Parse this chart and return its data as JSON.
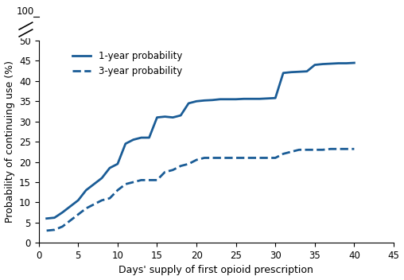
{
  "line1_x": [
    1,
    2,
    3,
    4,
    5,
    6,
    7,
    8,
    9,
    10,
    11,
    12,
    13,
    14,
    15,
    16,
    17,
    18,
    19,
    20,
    21,
    22,
    23,
    24,
    25,
    26,
    27,
    28,
    29,
    30,
    31,
    32,
    33,
    34,
    35,
    36,
    37,
    38,
    39,
    40
  ],
  "line1_y": [
    6.0,
    6.2,
    7.5,
    9.0,
    10.5,
    13.0,
    14.5,
    16.0,
    18.5,
    19.5,
    24.5,
    25.5,
    26.0,
    26.0,
    31.0,
    31.2,
    31.0,
    31.5,
    34.5,
    35.0,
    35.2,
    35.3,
    35.5,
    35.5,
    35.5,
    35.6,
    35.6,
    35.6,
    35.7,
    35.8,
    42.0,
    42.2,
    42.3,
    42.4,
    44.0,
    44.2,
    44.3,
    44.4,
    44.4,
    44.5
  ],
  "line2_x": [
    1,
    2,
    3,
    4,
    5,
    6,
    7,
    8,
    9,
    10,
    11,
    12,
    13,
    14,
    15,
    16,
    17,
    18,
    19,
    20,
    21,
    22,
    23,
    24,
    25,
    26,
    27,
    28,
    29,
    30,
    31,
    32,
    33,
    34,
    35,
    36,
    37,
    38,
    39,
    40
  ],
  "line2_y": [
    3.0,
    3.2,
    4.0,
    5.5,
    7.0,
    8.5,
    9.5,
    10.5,
    11.0,
    13.0,
    14.5,
    15.0,
    15.5,
    15.5,
    15.5,
    17.5,
    18.0,
    19.0,
    19.5,
    20.5,
    21.0,
    21.0,
    21.0,
    21.0,
    21.0,
    21.0,
    21.0,
    21.0,
    21.0,
    21.0,
    22.0,
    22.5,
    23.0,
    23.0,
    23.0,
    23.0,
    23.2,
    23.2,
    23.2,
    23.2
  ],
  "color": "#1a5c96",
  "xlabel": "Days' supply of first opioid prescription",
  "ylabel": "Probability of continuing use (%)",
  "xlim": [
    0,
    45
  ],
  "ylim": [
    0,
    50
  ],
  "yticks": [
    0,
    5,
    10,
    15,
    20,
    25,
    30,
    35,
    40,
    45,
    50
  ],
  "xticks": [
    0,
    5,
    10,
    15,
    20,
    25,
    30,
    35,
    40,
    45
  ],
  "legend1": "1-year probability",
  "legend2": "3-year probability",
  "linewidth": 2.0,
  "background_color": "#ffffff"
}
